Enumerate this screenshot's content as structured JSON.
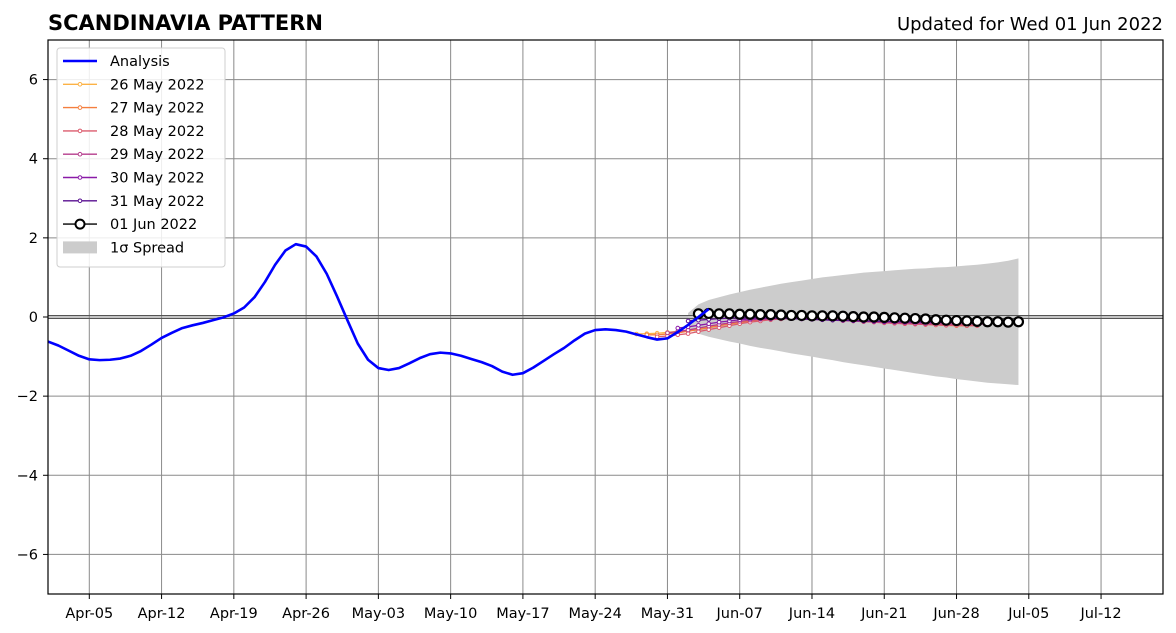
{
  "chart_data": {
    "type": "line",
    "title": "SCANDINAVIA PATTERN",
    "subtitle": "Updated for Wed 01 Jun 2022",
    "xlabel": "",
    "ylabel": "",
    "ylim": [
      -7,
      7
    ],
    "xlim": [
      "2022-04-01",
      "2022-07-18"
    ],
    "grid": true,
    "legend_position": "top-left",
    "x_ticks": [
      "Apr-05",
      "Apr-12",
      "Apr-19",
      "Apr-26",
      "May-03",
      "May-10",
      "May-17",
      "May-24",
      "May-31",
      "Jun-07",
      "Jun-14",
      "Jun-21",
      "Jun-28",
      "Jul-05",
      "Jul-12"
    ],
    "x_tick_dates": [
      "2022-04-05",
      "2022-04-12",
      "2022-04-19",
      "2022-04-26",
      "2022-05-03",
      "2022-05-10",
      "2022-05-17",
      "2022-05-24",
      "2022-05-31",
      "2022-06-07",
      "2022-06-14",
      "2022-06-21",
      "2022-06-28",
      "2022-07-05",
      "2022-07-12"
    ],
    "y_ticks": [
      "6",
      "4",
      "2",
      "0",
      "−2",
      "−4",
      "−6"
    ],
    "y_tick_values": [
      6,
      4,
      2,
      0,
      -2,
      -4,
      -6
    ],
    "legend": [
      {
        "label": "Analysis",
        "color": "#0000ff",
        "marker": "none"
      },
      {
        "label": "26 May 2022",
        "color": "#fcb245",
        "marker": "dot"
      },
      {
        "label": "27 May 2022",
        "color": "#f47f3f",
        "marker": "dot"
      },
      {
        "label": "28 May 2022",
        "color": "#dc5b6d",
        "marker": "dot"
      },
      {
        "label": "29 May 2022",
        "color": "#b43b8c",
        "marker": "dot"
      },
      {
        "label": "30 May 2022",
        "color": "#8a1aa8",
        "marker": "dot"
      },
      {
        "label": "31 May 2022",
        "color": "#580f91",
        "marker": "dot"
      },
      {
        "label": "01 Jun 2022",
        "color": "#000000",
        "marker": "circle"
      },
      {
        "label": "1σ Spread",
        "color": "#cccccc",
        "marker": "patch"
      }
    ],
    "analysis": {
      "start": "2022-04-01",
      "values": [
        -0.62,
        -0.72,
        -0.85,
        -0.98,
        -1.07,
        -1.09,
        -1.08,
        -1.05,
        -0.98,
        -0.86,
        -0.7,
        -0.53,
        -0.4,
        -0.28,
        -0.21,
        -0.15,
        -0.08,
        -0.01,
        0.09,
        0.24,
        0.5,
        0.88,
        1.32,
        1.68,
        1.84,
        1.78,
        1.53,
        1.09,
        0.52,
        -0.08,
        -0.67,
        -1.08,
        -1.29,
        -1.34,
        -1.29,
        -1.17,
        -1.04,
        -0.94,
        -0.9,
        -0.92,
        -0.98,
        -1.06,
        -1.14,
        -1.24,
        -1.38,
        -1.46,
        -1.42,
        -1.28,
        -1.11,
        -0.94,
        -0.78,
        -0.59,
        -0.42,
        -0.33,
        -0.31,
        -0.33,
        -0.37,
        -0.44,
        -0.51,
        -0.57,
        -0.54,
        -0.38,
        -0.2,
        0.0,
        0.2
      ]
    },
    "forecasts": [
      {
        "name": "26 May 2022",
        "color": "#fcb245",
        "start": "2022-05-28",
        "values": [
          -0.43,
          -0.42,
          -0.41,
          -0.39,
          -0.36,
          -0.33,
          -0.29,
          -0.25,
          -0.21,
          -0.17,
          -0.13,
          -0.1,
          -0.07,
          -0.05,
          -0.03,
          -0.02,
          -0.02,
          -0.03,
          -0.04,
          -0.05,
          -0.06,
          -0.07,
          -0.09,
          -0.1,
          -0.11,
          -0.12,
          -0.13,
          -0.14,
          -0.15,
          -0.16,
          -0.17,
          -0.18,
          -0.19
        ]
      },
      {
        "name": "27 May 2022",
        "color": "#f47f3f",
        "start": "2022-05-29",
        "values": [
          -0.45,
          -0.45,
          -0.43,
          -0.4,
          -0.36,
          -0.32,
          -0.27,
          -0.22,
          -0.18,
          -0.14,
          -0.1,
          -0.07,
          -0.05,
          -0.03,
          -0.02,
          -0.02,
          -0.03,
          -0.04,
          -0.06,
          -0.07,
          -0.09,
          -0.11,
          -0.12,
          -0.14,
          -0.15,
          -0.17,
          -0.18,
          -0.19,
          -0.2,
          -0.21,
          -0.22,
          -0.22
        ]
      },
      {
        "name": "28 May 2022",
        "color": "#dc5b6d",
        "start": "2022-05-30",
        "values": [
          -0.5,
          -0.48,
          -0.45,
          -0.42,
          -0.37,
          -0.32,
          -0.27,
          -0.22,
          -0.17,
          -0.13,
          -0.1,
          -0.07,
          -0.05,
          -0.04,
          -0.04,
          -0.05,
          -0.06,
          -0.07,
          -0.09,
          -0.1,
          -0.12,
          -0.13,
          -0.15,
          -0.16,
          -0.17,
          -0.18,
          -0.19,
          -0.2,
          -0.21,
          -0.21,
          -0.22,
          -0.22
        ]
      },
      {
        "name": "29 May 2022",
        "color": "#b43b8c",
        "start": "2022-05-31",
        "values": [
          -0.4,
          -0.37,
          -0.33,
          -0.28,
          -0.23,
          -0.19,
          -0.15,
          -0.11,
          -0.08,
          -0.06,
          -0.05,
          -0.04,
          -0.04,
          -0.05,
          -0.06,
          -0.07,
          -0.08,
          -0.09,
          -0.1,
          -0.11,
          -0.12,
          -0.13,
          -0.14,
          -0.15,
          -0.16,
          -0.17,
          -0.17,
          -0.18,
          -0.18,
          -0.18,
          -0.18,
          -0.18
        ]
      },
      {
        "name": "30 May 2022",
        "color": "#8a1aa8",
        "start": "2022-06-01",
        "values": [
          -0.28,
          -0.25,
          -0.21,
          -0.17,
          -0.13,
          -0.1,
          -0.07,
          -0.05,
          -0.04,
          -0.03,
          -0.03,
          -0.03,
          -0.04,
          -0.05,
          -0.06,
          -0.07,
          -0.08,
          -0.09,
          -0.1,
          -0.11,
          -0.12,
          -0.12,
          -0.13,
          -0.13,
          -0.14,
          -0.14,
          -0.14,
          -0.14,
          -0.14,
          -0.14,
          -0.14,
          -0.14
        ]
      },
      {
        "name": "31 May 2022",
        "color": "#580f91",
        "start": "2022-06-02",
        "values": [
          -0.1,
          -0.08,
          -0.06,
          -0.04,
          -0.03,
          -0.02,
          -0.02,
          -0.02,
          -0.03,
          -0.03,
          -0.04,
          -0.05,
          -0.06,
          -0.07,
          -0.08,
          -0.08,
          -0.09,
          -0.1,
          -0.1,
          -0.11,
          -0.11,
          -0.12,
          -0.12,
          -0.12,
          -0.13,
          -0.13,
          -0.13,
          -0.13,
          -0.13,
          -0.13,
          -0.13,
          -0.13
        ]
      },
      {
        "name": "01 Jun 2022",
        "color": "#000000",
        "start": "2022-06-03",
        "values": [
          0.08,
          0.09,
          0.08,
          0.08,
          0.07,
          0.07,
          0.06,
          0.06,
          0.05,
          0.04,
          0.04,
          0.03,
          0.03,
          0.03,
          0.02,
          0.01,
          0.0,
          0.0,
          -0.01,
          -0.02,
          -0.03,
          -0.04,
          -0.05,
          -0.07,
          -0.08,
          -0.09,
          -0.1,
          -0.11,
          -0.12,
          -0.12,
          -0.13,
          -0.12
        ]
      }
    ],
    "spread": {
      "start": "2022-06-02",
      "upper": [
        0.1,
        0.32,
        0.43,
        0.5,
        0.57,
        0.63,
        0.69,
        0.74,
        0.79,
        0.84,
        0.88,
        0.92,
        0.96,
        1.0,
        1.03,
        1.06,
        1.09,
        1.12,
        1.14,
        1.16,
        1.18,
        1.2,
        1.22,
        1.23,
        1.25,
        1.26,
        1.28,
        1.3,
        1.32,
        1.35,
        1.38,
        1.42,
        1.48
      ],
      "lower": [
        -0.3,
        -0.42,
        -0.5,
        -0.56,
        -0.62,
        -0.67,
        -0.73,
        -0.78,
        -0.82,
        -0.87,
        -0.92,
        -0.96,
        -1.0,
        -1.05,
        -1.09,
        -1.14,
        -1.18,
        -1.22,
        -1.26,
        -1.3,
        -1.34,
        -1.38,
        -1.42,
        -1.46,
        -1.5,
        -1.53,
        -1.57,
        -1.6,
        -1.63,
        -1.66,
        -1.68,
        -1.7,
        -1.72
      ]
    }
  }
}
